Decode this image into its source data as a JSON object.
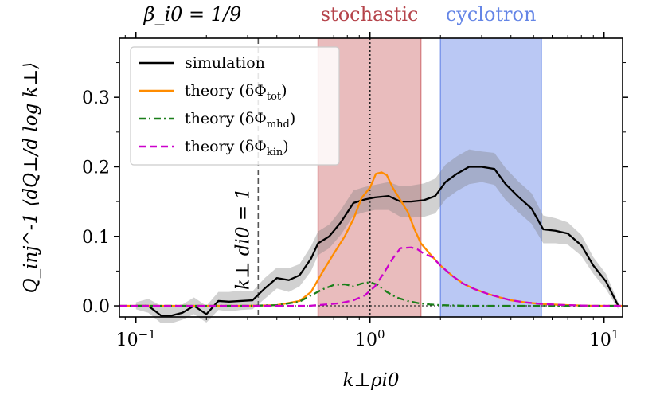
{
  "chart_data": {
    "type": "line",
    "title": "β_i0 = 1/9",
    "xlabel": "k⊥ρi0",
    "ylabel": "Q_inj^-1 ⟨dQ⊥/d log k⊥⟩",
    "x_scale": "log",
    "xlim": [
      0.085,
      12
    ],
    "ylim": [
      -0.016,
      0.385
    ],
    "x_ticks": [
      {
        "value": 0.1,
        "base": "10",
        "exp": "−1"
      },
      {
        "value": 1,
        "base": "10",
        "exp": "0"
      },
      {
        "value": 10,
        "base": "10",
        "exp": "1"
      }
    ],
    "y_ticks": [
      {
        "value": 0.0,
        "label": "0.0"
      },
      {
        "value": 0.1,
        "label": "0.1"
      },
      {
        "value": 0.2,
        "label": "0.2"
      },
      {
        "value": 0.3,
        "label": "0.3"
      }
    ],
    "bands": [
      {
        "name": "stochastic",
        "x_range": [
          0.6,
          1.65
        ],
        "color": "#c44e52",
        "label_color": "#b5434a"
      },
      {
        "name": "cyclotron",
        "x_range": [
          2.0,
          5.4
        ],
        "color": "#4a6fe3",
        "label_color": "#6485e6"
      }
    ],
    "vlines": [
      {
        "x": 0.333,
        "style": "dashed",
        "color": "#555555",
        "label": "k⊥ di0 = 1"
      },
      {
        "x": 1.0,
        "style": "dotted",
        "color": "#222222",
        "label": ""
      }
    ],
    "series": [
      {
        "name": "simulation",
        "legend": "simulation",
        "color": "#000000",
        "style": "solid",
        "x": [
          0.1,
          0.113,
          0.128,
          0.142,
          0.158,
          0.177,
          0.2,
          0.225,
          0.25,
          0.28,
          0.315,
          0.355,
          0.4,
          0.45,
          0.5,
          0.56,
          0.6,
          0.67,
          0.75,
          0.85,
          0.95,
          1.05,
          1.2,
          1.35,
          1.5,
          1.7,
          1.9,
          2.1,
          2.35,
          2.65,
          3.0,
          3.4,
          3.8,
          4.3,
          4.9,
          5.5,
          6.2,
          7.0,
          8.0,
          9.0,
          10.2,
          11.5
        ],
        "y": [
          0.0,
          0.0,
          -0.014,
          -0.014,
          -0.01,
          0.0,
          -0.012,
          0.007,
          0.006,
          0.007,
          0.008,
          0.025,
          0.04,
          0.037,
          0.044,
          0.068,
          0.09,
          0.1,
          0.12,
          0.148,
          0.153,
          0.156,
          0.158,
          0.15,
          0.15,
          0.152,
          0.158,
          0.178,
          0.19,
          0.2,
          0.2,
          0.197,
          0.175,
          0.157,
          0.14,
          0.11,
          0.108,
          0.104,
          0.087,
          0.058,
          0.035,
          0.0
        ],
        "band_lower": [
          -0.005,
          -0.01,
          -0.025,
          -0.025,
          -0.02,
          -0.012,
          -0.024,
          -0.006,
          -0.008,
          -0.006,
          -0.005,
          0.01,
          0.025,
          0.02,
          0.028,
          0.05,
          0.073,
          0.083,
          0.102,
          0.13,
          0.135,
          0.138,
          0.138,
          0.128,
          0.127,
          0.128,
          0.133,
          0.153,
          0.165,
          0.175,
          0.178,
          0.174,
          0.152,
          0.135,
          0.118,
          0.09,
          0.09,
          0.088,
          0.072,
          0.046,
          0.024,
          -0.005
        ],
        "band_upper": [
          0.005,
          0.01,
          0.0,
          -0.002,
          0.002,
          0.012,
          0.0,
          0.02,
          0.02,
          0.022,
          0.021,
          0.04,
          0.055,
          0.054,
          0.06,
          0.086,
          0.107,
          0.117,
          0.138,
          0.166,
          0.171,
          0.174,
          0.178,
          0.172,
          0.173,
          0.176,
          0.183,
          0.203,
          0.215,
          0.225,
          0.222,
          0.22,
          0.198,
          0.179,
          0.162,
          0.13,
          0.126,
          0.12,
          0.102,
          0.07,
          0.046,
          0.005
        ]
      },
      {
        "name": "theory-tot",
        "legend": "theory (δΦtot)",
        "legend_main": "theory (δΦ",
        "legend_sub": "tot",
        "color": "#ff8c00",
        "style": "solid",
        "x": [
          0.085,
          0.3,
          0.4,
          0.5,
          0.56,
          0.63,
          0.7,
          0.78,
          0.85,
          0.92,
          1.0,
          1.06,
          1.12,
          1.18,
          1.25,
          1.35,
          1.45,
          1.55,
          1.65,
          1.8,
          2.0,
          2.25,
          2.5,
          2.8,
          3.2,
          3.6,
          4.0,
          4.6,
          5.3,
          6.0,
          7.0,
          8.0,
          9.0,
          10.5,
          12.0
        ],
        "y": [
          0.0,
          0.0,
          0.001,
          0.007,
          0.02,
          0.05,
          0.075,
          0.1,
          0.125,
          0.155,
          0.17,
          0.19,
          0.192,
          0.188,
          0.17,
          0.152,
          0.135,
          0.11,
          0.09,
          0.075,
          0.058,
          0.043,
          0.032,
          0.024,
          0.017,
          0.012,
          0.008,
          0.005,
          0.003,
          0.002,
          0.001,
          0.0005,
          0.0,
          0.0,
          0.0
        ]
      },
      {
        "name": "theory-mhd",
        "legend": "theory (δΦmhd)",
        "legend_main": "theory (δΦ",
        "legend_sub": "mhd",
        "color": "#1a7f1a",
        "style": "dashdot",
        "x": [
          0.085,
          0.3,
          0.4,
          0.5,
          0.56,
          0.63,
          0.7,
          0.78,
          0.85,
          0.92,
          1.0,
          1.08,
          1.18,
          1.3,
          1.45,
          1.6,
          1.8,
          2.0,
          2.3,
          2.6,
          3.0,
          4.0,
          6.0,
          9.0,
          12.0
        ],
        "y": [
          0.0,
          0.0,
          0.001,
          0.006,
          0.015,
          0.024,
          0.03,
          0.031,
          0.028,
          0.032,
          0.034,
          0.03,
          0.02,
          0.012,
          0.007,
          0.004,
          0.002,
          0.001,
          0.0005,
          0.0,
          0.0,
          0.0,
          0.0,
          0.0,
          0.0
        ]
      },
      {
        "name": "theory-kin",
        "legend": "theory (δΦkin)",
        "legend_main": "theory (δΦ",
        "legend_sub": "kin",
        "color": "#cc00cc",
        "style": "dashed",
        "x": [
          0.085,
          0.55,
          0.65,
          0.75,
          0.85,
          0.95,
          1.05,
          1.15,
          1.25,
          1.35,
          1.5,
          1.6,
          1.7,
          1.85,
          2.0,
          2.25,
          2.5,
          2.8,
          3.2,
          3.6,
          4.0,
          4.6,
          5.3,
          6.0,
          7.0,
          8.0,
          9.0,
          10.5,
          12.0
        ],
        "y": [
          0.0,
          0.0,
          0.002,
          0.004,
          0.008,
          0.015,
          0.028,
          0.048,
          0.068,
          0.083,
          0.084,
          0.081,
          0.075,
          0.07,
          0.058,
          0.043,
          0.032,
          0.024,
          0.017,
          0.012,
          0.008,
          0.005,
          0.003,
          0.002,
          0.001,
          0.0005,
          0.0,
          0.0,
          0.0
        ]
      }
    ],
    "legend_position": "top-left",
    "grid": false
  }
}
